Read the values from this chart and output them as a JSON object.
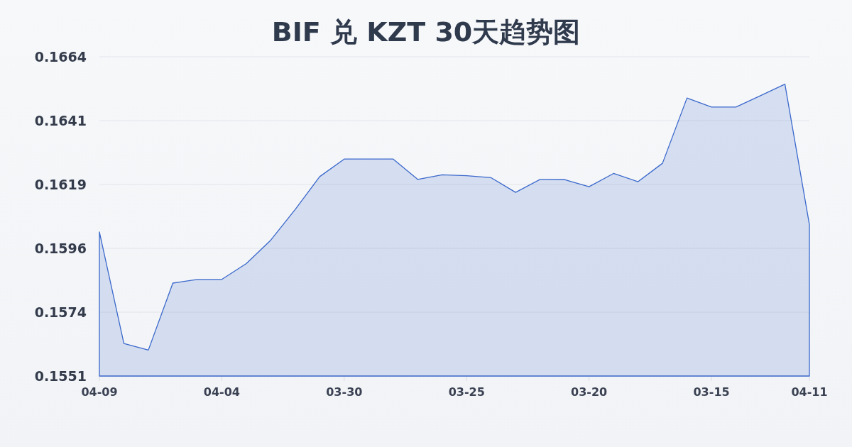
{
  "chart_data": {
    "type": "area",
    "title": "BIF 兑 KZT 30天趋势图",
    "categories": [
      "04-09",
      null,
      null,
      null,
      null,
      "04-04",
      null,
      null,
      null,
      null,
      "03-30",
      null,
      null,
      null,
      null,
      "03-25",
      null,
      null,
      null,
      null,
      "03-20",
      null,
      null,
      null,
      null,
      "03-15",
      null,
      null,
      null,
      "04-11"
    ],
    "series": [
      {
        "color": "#3a68cc",
        "values": [
          0.1602,
          0.15625,
          0.15602,
          0.15839,
          0.15852,
          0.15852,
          0.15908,
          0.15991,
          0.161,
          0.16216,
          0.16278,
          0.16278,
          0.16278,
          0.16206,
          0.16222,
          0.16219,
          0.16212,
          0.1616,
          0.16206,
          0.16205,
          0.1618,
          0.16227,
          0.16198,
          0.16263,
          0.16494,
          0.16462,
          0.16462,
          0.16502,
          0.16543,
          0.16046
        ]
      }
    ],
    "ylim": [
      0.1551,
      0.1664
    ],
    "yticks": [
      0.1551,
      {
        "value": 0.15736,
        "label": "0.1574"
      },
      {
        "value": 0.15962,
        "label": "0.1596"
      },
      {
        "value": 0.16188,
        "label": "0.1619"
      },
      {
        "value": 0.16414,
        "label": "0.1641"
      },
      0.1664
    ],
    "grid": "y"
  }
}
